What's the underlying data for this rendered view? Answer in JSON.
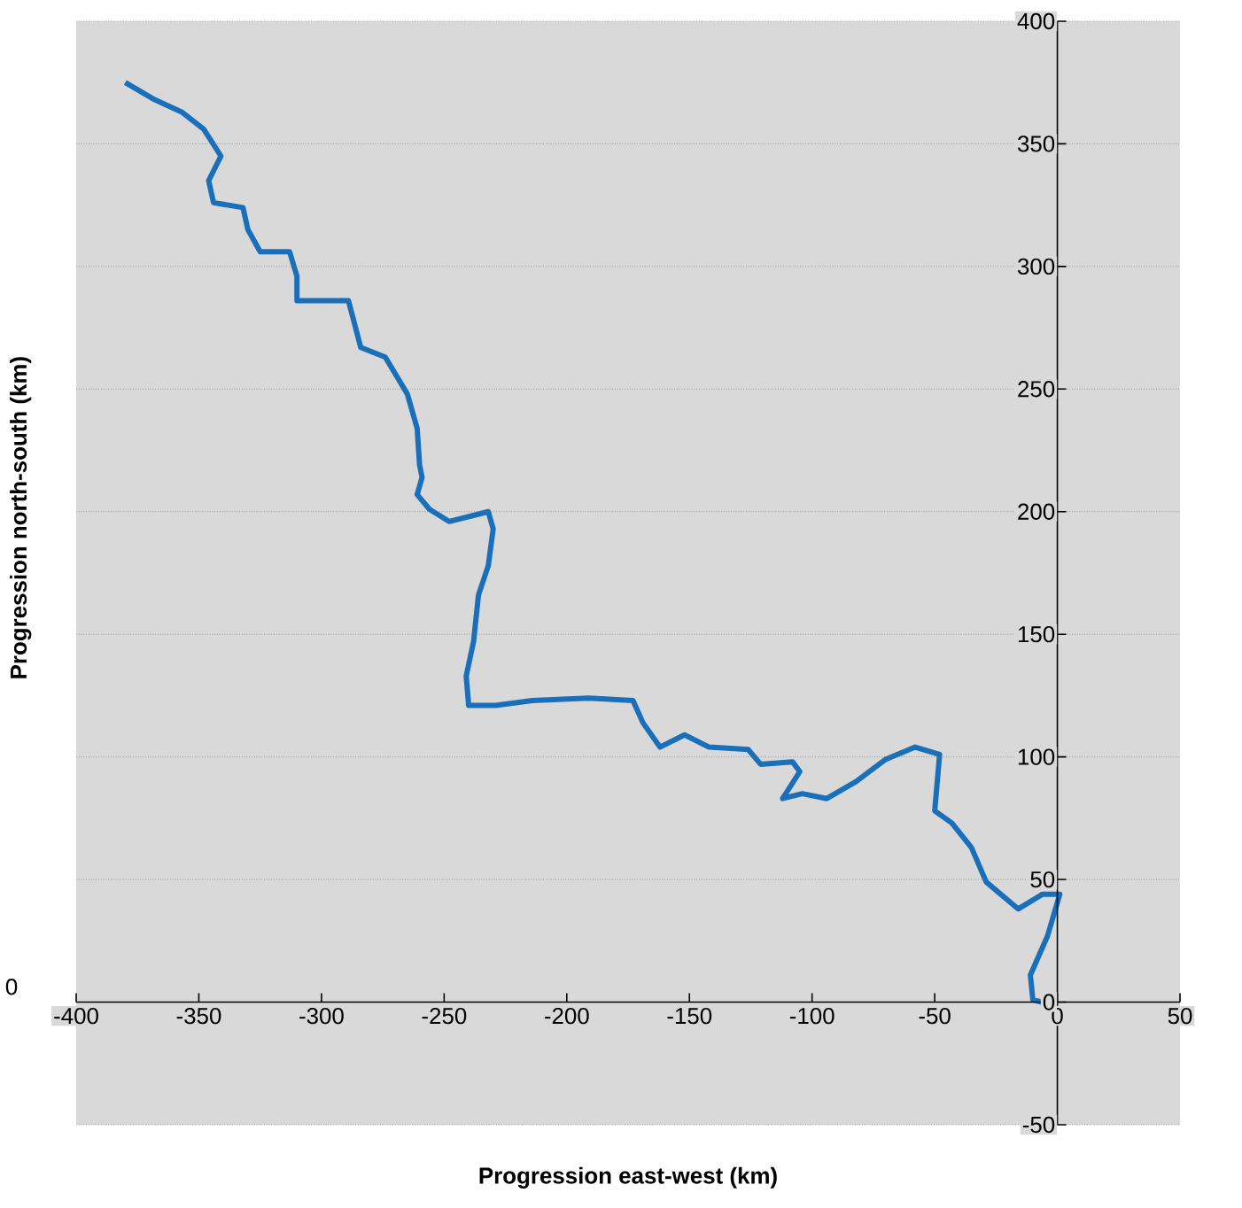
{
  "chart_data": {
    "type": "line",
    "xlabel": "Progression east-west (km)",
    "ylabel": "Progression north-south (km)",
    "annotations": [
      "0"
    ],
    "x": [
      -3,
      -10,
      -11,
      -4,
      1,
      -6,
      -16,
      -29,
      -35,
      -43,
      -50,
      -48,
      -58,
      -70,
      -82,
      -94,
      -104,
      -112,
      -105,
      -108,
      -121,
      -126,
      -142,
      -152,
      -162,
      -169,
      -173,
      -191,
      -214,
      -229,
      -240,
      -241,
      -238,
      -236,
      -232,
      -230,
      -232,
      -248,
      -256,
      -261,
      -259,
      -260,
      -261,
      -265,
      -274,
      -284,
      -289,
      -299,
      -310,
      -310,
      -313,
      -325,
      -330,
      -332,
      -344,
      -346,
      -341,
      -348,
      -357,
      -368,
      -380
    ],
    "series": [
      {
        "color": "#1a6fba",
        "values": [
          -1,
          1,
          11,
          27,
          44,
          44,
          38,
          49,
          63,
          73,
          78,
          101,
          104,
          99,
          90,
          83,
          85,
          83,
          94,
          98,
          97,
          103,
          104,
          109,
          104,
          114,
          123,
          124,
          123,
          121,
          121,
          133,
          147,
          166,
          178,
          193,
          200,
          196,
          201,
          207,
          214,
          219,
          234,
          248,
          263,
          267,
          286,
          286,
          286,
          296,
          306,
          306,
          315,
          324,
          326,
          335,
          345,
          356,
          363,
          368,
          375
        ]
      }
    ],
    "xlim": [
      -400,
      50
    ],
    "ylim": [
      -50,
      400
    ],
    "xticks": [
      -400,
      -350,
      -300,
      -250,
      -200,
      -150,
      -100,
      -50,
      0,
      50
    ],
    "yticks": [
      -50,
      0,
      50,
      100,
      150,
      200,
      250,
      300,
      350,
      400
    ],
    "grid": "y",
    "line_style": "solid"
  }
}
